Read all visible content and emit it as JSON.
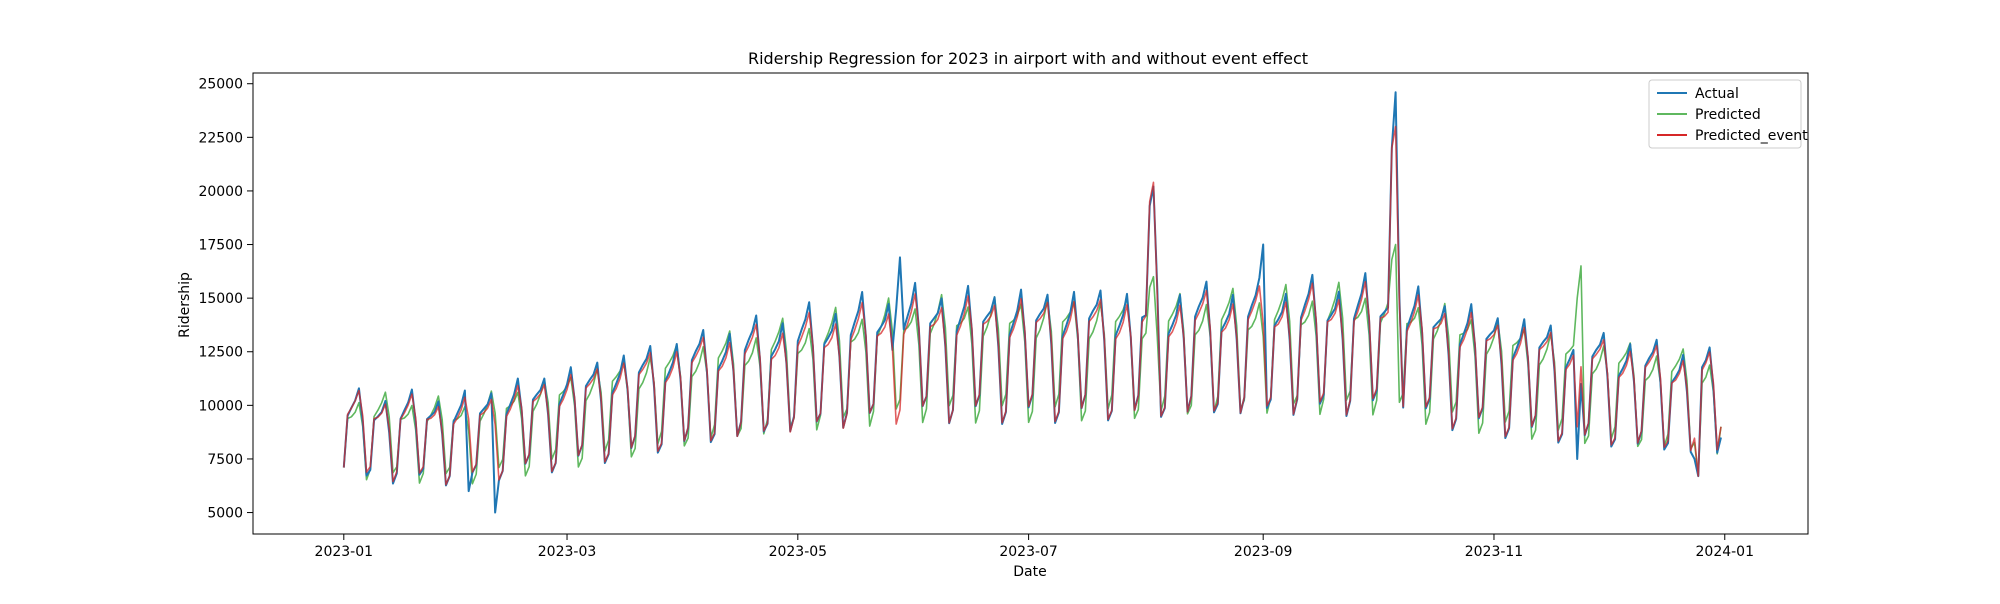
{
  "chart_data": {
    "type": "line",
    "title": "Ridership Regression for 2023 in airport with and without event effect",
    "xlabel": "Date",
    "ylabel": "Ridership",
    "x_range": [
      "2022-12-08",
      "2024-01-23"
    ],
    "ylim": [
      4000,
      25500
    ],
    "x_ticks": [
      "2023-01",
      "2023-03",
      "2023-05",
      "2023-07",
      "2023-09",
      "2023-11",
      "2024-01"
    ],
    "y_ticks": [
      5000,
      7500,
      10000,
      12500,
      15000,
      17500,
      20000,
      22500,
      25000
    ],
    "y_tick_labels": [
      "5000",
      "7500",
      "10000",
      "12500",
      "15000",
      "17500",
      "20000",
      "22500",
      "25000"
    ],
    "grid": false,
    "legend_position": "top-right",
    "weekly_pattern_start": "2023-01-01",
    "series": [
      {
        "name": "Actual",
        "color": "#1f77b4",
        "base_anchors": [
          [
            "2023-01-01",
            9400
          ],
          [
            "2023-02-01",
            9300
          ],
          [
            "2023-03-01",
            10400
          ],
          [
            "2023-04-01",
            11700
          ],
          [
            "2023-05-01",
            12800
          ],
          [
            "2023-06-01",
            13700
          ],
          [
            "2023-07-01",
            13600
          ],
          [
            "2023-08-01",
            13700
          ],
          [
            "2023-09-01",
            13900
          ],
          [
            "2023-10-01",
            14100
          ],
          [
            "2023-11-01",
            12700
          ],
          [
            "2023-12-01",
            11800
          ],
          [
            "2023-12-31",
            11000
          ]
        ],
        "weekly_factors": [
          0.74,
          1.0,
          1.03,
          1.06,
          1.12,
          0.96,
          0.7
        ],
        "overrides": [
          [
            "2023-01-01",
            7100
          ],
          [
            "2023-02-10",
            5000
          ],
          [
            "2023-02-03",
            6000
          ],
          [
            "2023-05-27",
            14500
          ],
          [
            "2023-05-28",
            16900
          ],
          [
            "2023-08-01",
            14200
          ],
          [
            "2023-08-02",
            19300
          ],
          [
            "2023-08-03",
            20200
          ],
          [
            "2023-08-04",
            15500
          ],
          [
            "2023-10-05",
            22000
          ],
          [
            "2023-10-06",
            24600
          ],
          [
            "2023-10-07",
            15000
          ],
          [
            "2023-09-01",
            17500
          ],
          [
            "2023-11-23",
            7500
          ],
          [
            "2023-11-24",
            11000
          ],
          [
            "2023-12-24",
            7500
          ],
          [
            "2023-12-25",
            6700
          ],
          [
            "2023-12-31",
            8500
          ]
        ]
      },
      {
        "name": "Predicted",
        "color": "#5fb85f",
        "base_anchors": [
          [
            "2023-01-01",
            9500
          ],
          [
            "2023-02-01",
            9200
          ],
          [
            "2023-03-01",
            10300
          ],
          [
            "2023-04-01",
            11600
          ],
          [
            "2023-05-01",
            12600
          ],
          [
            "2023-06-01",
            13500
          ],
          [
            "2023-07-01",
            13500
          ],
          [
            "2023-08-01",
            13500
          ],
          [
            "2023-09-01",
            13800
          ],
          [
            "2023-10-01",
            14000
          ],
          [
            "2023-11-01",
            12600
          ],
          [
            "2023-12-01",
            11700
          ],
          [
            "2023-12-31",
            11000
          ]
        ],
        "weekly_factors": [
          0.75,
          1.0,
          1.02,
          1.05,
          1.1,
          0.98,
          0.71
        ],
        "overrides": [
          [
            "2023-01-01",
            7100
          ],
          [
            "2023-08-02",
            15500
          ],
          [
            "2023-08-03",
            16000
          ],
          [
            "2023-10-05",
            16800
          ],
          [
            "2023-10-06",
            17500
          ],
          [
            "2023-11-23",
            15000
          ],
          [
            "2023-11-24",
            16500
          ],
          [
            "2023-12-25",
            6700
          ],
          [
            "2023-12-31",
            9000
          ]
        ]
      },
      {
        "name": "Predicted_event",
        "color": "#d62728",
        "base_anchors": [
          [
            "2023-01-01",
            9500
          ],
          [
            "2023-02-01",
            9200
          ],
          [
            "2023-03-01",
            10300
          ],
          [
            "2023-04-01",
            11600
          ],
          [
            "2023-05-01",
            12600
          ],
          [
            "2023-06-01",
            13500
          ],
          [
            "2023-07-01",
            13500
          ],
          [
            "2023-08-01",
            13500
          ],
          [
            "2023-09-01",
            13800
          ],
          [
            "2023-10-01",
            14000
          ],
          [
            "2023-11-01",
            12600
          ],
          [
            "2023-12-01",
            11700
          ],
          [
            "2023-12-31",
            11000
          ]
        ],
        "weekly_factors": [
          0.75,
          1.0,
          1.02,
          1.05,
          1.1,
          0.98,
          0.71
        ],
        "overrides": [
          [
            "2023-01-01",
            7100
          ],
          [
            "2023-08-02",
            19500
          ],
          [
            "2023-08-03",
            20400
          ],
          [
            "2023-08-04",
            15200
          ],
          [
            "2023-10-05",
            22000
          ],
          [
            "2023-10-06",
            23000
          ],
          [
            "2023-10-07",
            14800
          ],
          [
            "2023-11-23",
            9000
          ],
          [
            "2023-11-24",
            11800
          ],
          [
            "2023-12-25",
            6700
          ],
          [
            "2023-12-31",
            9000
          ]
        ]
      }
    ]
  }
}
